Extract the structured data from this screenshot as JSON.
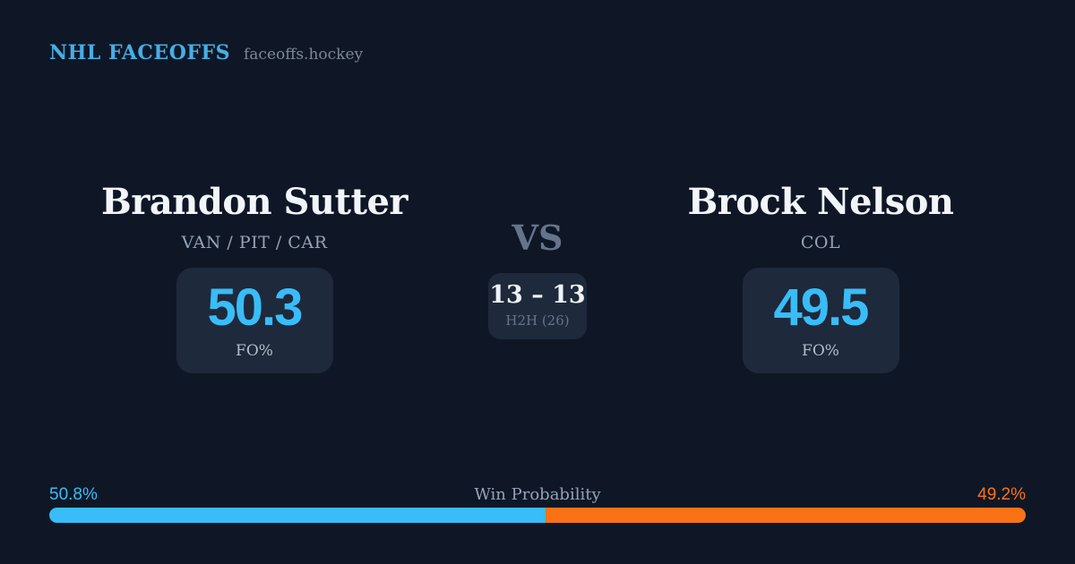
{
  "header": {
    "brand": "NHL FACEOFFS",
    "site": "faceoffs.hockey"
  },
  "players": {
    "left": {
      "name": "Brandon Sutter",
      "teams": "VAN / PIT / CAR",
      "fo_value": "50.3",
      "fo_label": "FO%"
    },
    "right": {
      "name": "Brock Nelson",
      "teams": "COL",
      "fo_value": "49.5",
      "fo_label": "FO%"
    }
  },
  "center": {
    "vs_label": "VS",
    "h2h_score": "13 – 13",
    "h2h_label": "H2H (26)"
  },
  "win_probability": {
    "title": "Win Probability",
    "left_label": "50.8%",
    "right_label": "49.2%",
    "left_value": 50.8,
    "right_value": 49.2
  },
  "colors": {
    "background": "#0f1726",
    "card": "#1e293b",
    "blue": "#38bdf8",
    "orange": "#f97316",
    "header_blue": "#45aee5"
  }
}
